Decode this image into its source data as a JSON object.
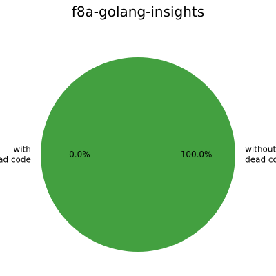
{
  "chart_data": {
    "type": "pie",
    "title": "f8a-golang-insights",
    "start_angle_deg": 180,
    "direction": "counterclockwise",
    "series": [
      {
        "label_lines": [
          "without",
          "dead code"
        ],
        "value": 100.0,
        "pct_label": "100.0%",
        "color": "#43a040"
      },
      {
        "label_lines": [
          "with",
          "dead code"
        ],
        "value": 0.0,
        "pct_label": "0.0%",
        "color": "#e05a3f"
      }
    ]
  }
}
